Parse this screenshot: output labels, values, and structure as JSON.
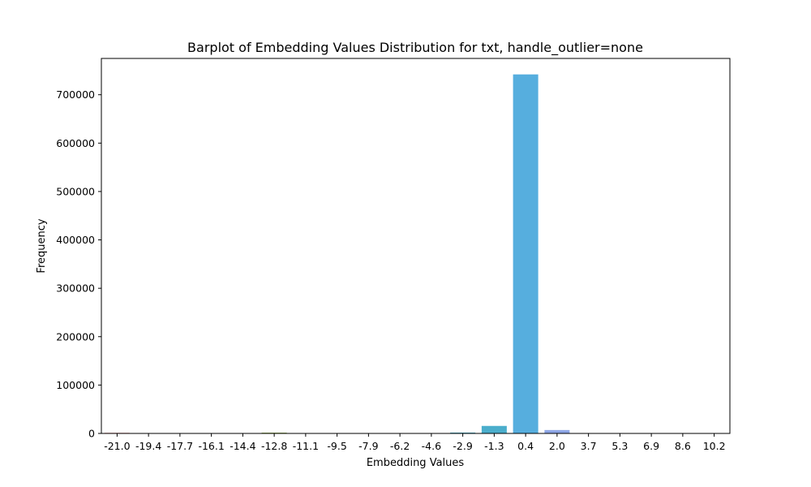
{
  "chart_data": {
    "type": "bar",
    "title": "Barplot of Embedding Values Distribution for txt, handle_outlier=none",
    "xlabel": "Embedding Values",
    "ylabel": "Frequency",
    "ylim": [
      0,
      775000
    ],
    "yticks": [
      0,
      100000,
      200000,
      300000,
      400000,
      500000,
      600000,
      700000
    ],
    "grid": false,
    "legend": "none",
    "categories": [
      "-21.0",
      "-19.4",
      "-17.7",
      "-16.1",
      "-14.4",
      "-12.8",
      "-11.1",
      "-9.5",
      "-7.9",
      "-6.2",
      "-4.6",
      "-2.9",
      "-1.3",
      "0.4",
      "2.0",
      "3.7",
      "5.3",
      "6.9",
      "8.6",
      "10.2"
    ],
    "values": [
      1200,
      300,
      200,
      150,
      200,
      1500,
      300,
      200,
      200,
      200,
      300,
      1800,
      15500,
      742000,
      7000,
      300,
      200,
      100,
      100,
      100
    ],
    "colors": [
      "#e8837d",
      "#e48a53",
      "#cf9441",
      "#b69e3c",
      "#a2a63a",
      "#8aac3b",
      "#5db640",
      "#4bb57a",
      "#4bb499",
      "#4cb2ac",
      "#4ea9be",
      "#4fafc8",
      "#4baecc",
      "#56aede",
      "#8ea6e6",
      "#a49de8",
      "#c491e8",
      "#dc87db",
      "#e281c4",
      "#e47fa6"
    ]
  }
}
